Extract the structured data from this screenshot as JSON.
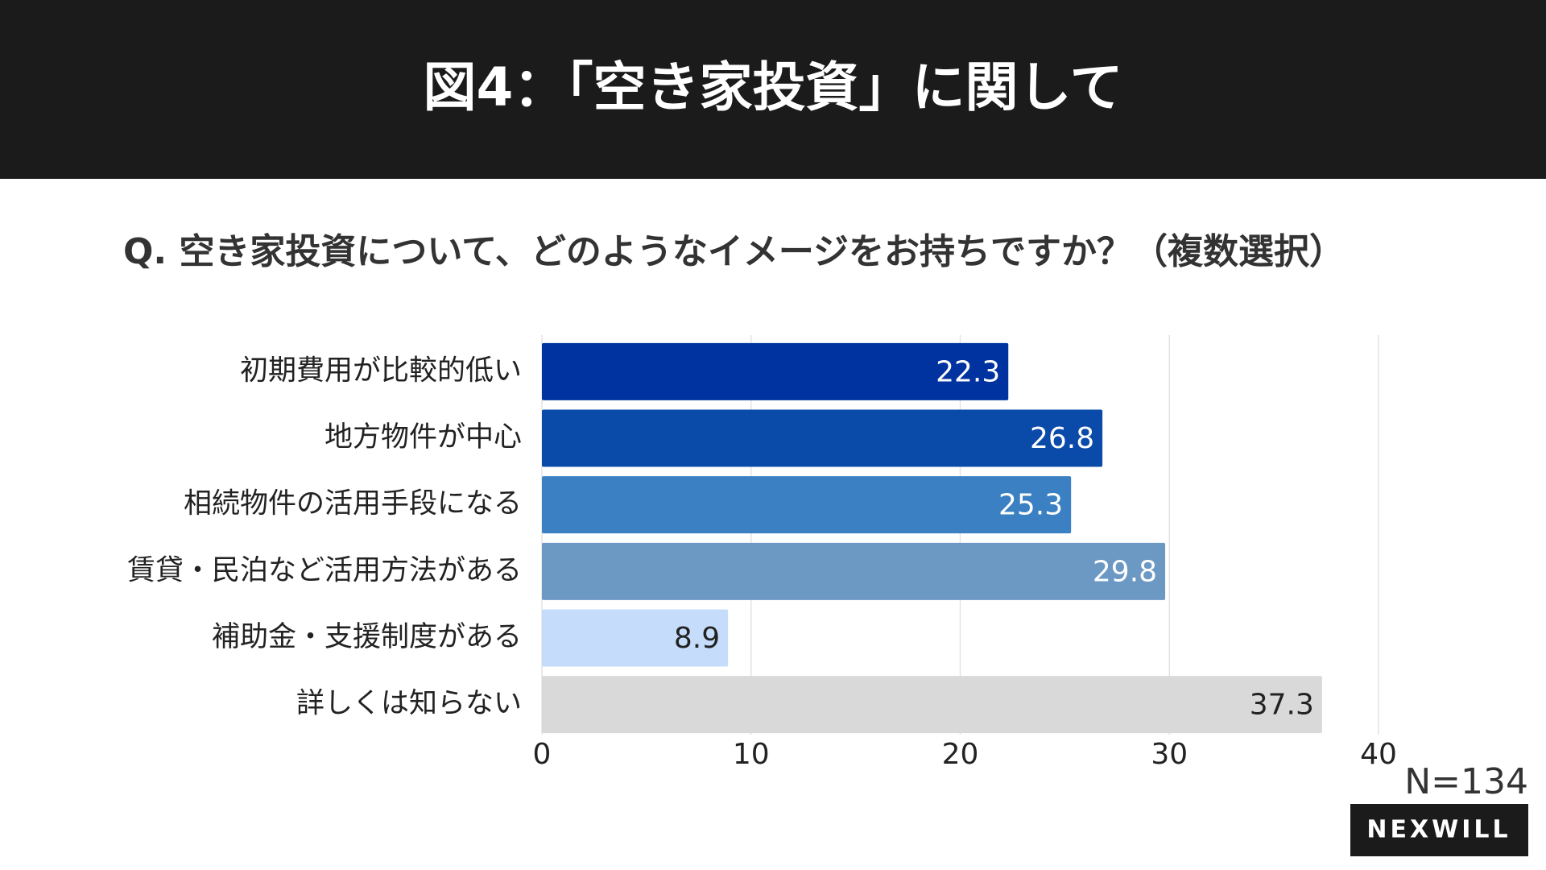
{
  "chart_data": {
    "type": "bar",
    "orientation": "horizontal",
    "title": "図4：「空き家投資」に関して",
    "subtitle": "Q. 空き家投資について、どのようなイメージをお持ちですか？（複数選択）",
    "categories": [
      "初期費用が比較的低い",
      "地方物件が中心",
      "相続物件の活用手段になる",
      "賃貸・民泊など活用方法がある",
      "補助金・支援制度がある",
      "詳しくは知らない"
    ],
    "values": [
      22.3,
      26.8,
      25.3,
      29.8,
      8.9,
      37.3
    ],
    "colors": [
      "#0033a0",
      "#0a4aa8",
      "#3a80c2",
      "#6c98c4",
      "#c5dcfb",
      "#d9d9d9"
    ],
    "xlim": [
      0,
      40
    ],
    "xticks": [
      0,
      10,
      20,
      30,
      40
    ],
    "grid": true,
    "note": "N=134",
    "logo": "NEXWILL"
  }
}
